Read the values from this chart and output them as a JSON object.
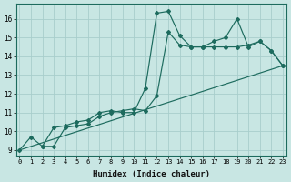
{
  "xlabel": "Humidex (Indice chaleur)",
  "bg_color": "#c8e6e3",
  "grid_color": "#a8cecc",
  "line_color": "#1d6b5e",
  "xlim": [
    -0.3,
    23.3
  ],
  "ylim": [
    8.7,
    16.8
  ],
  "xticks": [
    0,
    1,
    2,
    3,
    4,
    5,
    6,
    7,
    8,
    9,
    10,
    11,
    12,
    13,
    14,
    15,
    16,
    17,
    18,
    19,
    20,
    21,
    22,
    23
  ],
  "yticks": [
    9,
    10,
    11,
    12,
    13,
    14,
    15,
    16
  ],
  "line1_x": [
    0,
    1,
    2,
    3,
    4,
    5,
    6,
    7,
    8,
    9,
    10,
    11,
    12,
    13,
    14,
    15,
    16,
    17,
    18,
    19,
    20,
    21,
    22,
    23
  ],
  "line1_y": [
    9.0,
    9.7,
    9.2,
    10.2,
    10.3,
    10.5,
    10.6,
    11.0,
    11.1,
    11.0,
    11.0,
    12.3,
    16.3,
    16.4,
    15.1,
    14.5,
    14.5,
    14.5,
    14.5,
    14.5,
    14.6,
    14.8,
    14.3,
    13.5
  ],
  "line2_x": [
    2,
    3,
    4,
    5,
    6,
    7,
    8,
    9,
    10,
    11,
    12,
    13,
    14,
    15,
    16,
    17,
    18,
    19,
    20,
    21,
    22,
    23
  ],
  "line2_y": [
    9.2,
    9.2,
    10.2,
    10.3,
    10.4,
    10.8,
    11.0,
    11.1,
    11.2,
    11.1,
    11.9,
    15.3,
    14.6,
    14.5,
    14.5,
    14.8,
    15.0,
    16.0,
    14.5,
    14.8,
    14.3,
    13.5
  ],
  "line3_x": [
    0,
    23
  ],
  "line3_y": [
    9.0,
    13.5
  ]
}
